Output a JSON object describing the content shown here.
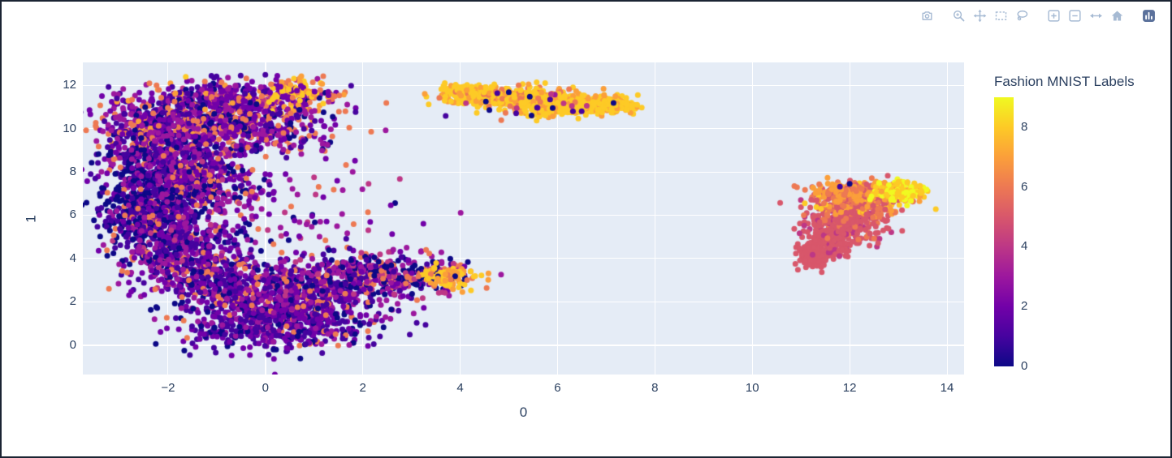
{
  "figure": {
    "border_color": "#1b2433",
    "background": "#ffffff"
  },
  "modebar": {
    "color": "#a6bad3",
    "logo_color": "#5b719b",
    "tools": [
      {
        "name": "download-plot",
        "icon": "camera-icon",
        "group_start": false
      },
      {
        "name": "zoom",
        "icon": "magnifier-icon",
        "group_start": true
      },
      {
        "name": "pan",
        "icon": "pan-icon",
        "group_start": false
      },
      {
        "name": "box-select",
        "icon": "box-select-icon",
        "group_start": false
      },
      {
        "name": "lasso-select",
        "icon": "lasso-icon",
        "group_start": false
      },
      {
        "name": "zoom-in",
        "icon": "zoom-in-icon",
        "group_start": true
      },
      {
        "name": "zoom-out",
        "icon": "zoom-out-icon",
        "group_start": false
      },
      {
        "name": "autoscale",
        "icon": "autoscale-icon",
        "group_start": false
      },
      {
        "name": "reset-axes",
        "icon": "home-icon",
        "group_start": false
      },
      {
        "name": "plotly-logo",
        "icon": "plotly-logo-icon",
        "group_start": true
      }
    ]
  },
  "chart_data": {
    "type": "scatter",
    "title": "",
    "xlabel": "0",
    "ylabel": "1",
    "xlim": [
      -3.75,
      14.35
    ],
    "ylim": [
      -1.35,
      13.05
    ],
    "x_ticks": [
      -2,
      0,
      2,
      4,
      6,
      8,
      10,
      12,
      14
    ],
    "y_ticks": [
      0,
      2,
      4,
      6,
      8,
      10,
      12
    ],
    "plot_bgcolor": "#e5ecf6",
    "grid_color": "#ffffff",
    "font_color": "#2a3f5f",
    "marker_size_px": 7,
    "legend_position": "right",
    "colorbar": {
      "title": "Fashion MNIST Labels",
      "ticks": [
        0,
        2,
        4,
        6,
        8
      ],
      "cmin": 0,
      "cmax": 9
    },
    "colorscale_plasma": [
      "#0d0887",
      "#46039f",
      "#7201a8",
      "#9c179e",
      "#bd3786",
      "#d8576b",
      "#ed7953",
      "#fb9f3a",
      "#fdca26",
      "#f0f921"
    ],
    "description": "2D embedding of Fashion MNIST, three clusters: large mixed-color crescent left, gold elongated strip top-center, crimson/gold leaf-shaped blob right",
    "clusters": [
      {
        "region": "crescent-top-band",
        "cx": -0.7,
        "cy": 11.25,
        "sx": 1.05,
        "sy": 0.5,
        "n": 520,
        "labels": {
          "0": 1,
          "1": 2,
          "2": 3,
          "3": 2,
          "4": 0.5,
          "6": 1.5,
          "7": 1,
          "8": 0.3
        }
      },
      {
        "region": "crescent-top-gold",
        "cx": 0.7,
        "cy": 11.7,
        "sx": 0.45,
        "sy": 0.28,
        "n": 90,
        "labels": {
          "2": 1,
          "6": 1,
          "7": 1,
          "8": 2
        }
      },
      {
        "region": "crescent-top-left",
        "cx": -1.9,
        "cy": 10.2,
        "sx": 0.75,
        "sy": 0.6,
        "n": 430,
        "labels": {
          "0": 1,
          "1": 2,
          "2": 3,
          "3": 2,
          "6": 1.5,
          "7": 0.5
        }
      },
      {
        "region": "crescent-upper-mid",
        "cx": -0.3,
        "cy": 9.7,
        "sx": 0.9,
        "sy": 0.55,
        "n": 330,
        "labels": {
          "0": 1,
          "1": 1.5,
          "2": 2,
          "3": 2,
          "6": 1.5
        }
      },
      {
        "region": "crescent-left-upper",
        "cx": -2.1,
        "cy": 8.6,
        "sx": 0.62,
        "sy": 0.75,
        "n": 430,
        "labels": {
          "0": 2,
          "1": 2,
          "2": 2,
          "3": 2,
          "6": 1
        }
      },
      {
        "region": "crescent-left-navy",
        "cx": -2.35,
        "cy": 6.4,
        "sx": 0.55,
        "sy": 1.0,
        "n": 520,
        "labels": {
          "0": 5,
          "1": 2,
          "2": 1,
          "3": 1,
          "6": 0.5
        }
      },
      {
        "region": "crescent-left-inner",
        "cx": -1.3,
        "cy": 7.6,
        "sx": 0.68,
        "sy": 0.85,
        "n": 340,
        "labels": {
          "0": 1.5,
          "1": 1.5,
          "2": 2,
          "3": 2,
          "6": 1
        }
      },
      {
        "region": "crescent-left-lower",
        "cx": -1.9,
        "cy": 4.6,
        "sx": 0.62,
        "sy": 0.85,
        "n": 430,
        "labels": {
          "0": 1.5,
          "1": 2.5,
          "2": 2,
          "3": 2,
          "4": 0.5,
          "6": 1
        }
      },
      {
        "region": "crescent-bottom-left",
        "cx": -0.9,
        "cy": 2.9,
        "sx": 0.68,
        "sy": 0.75,
        "n": 400,
        "labels": {
          "0": 1.5,
          "1": 3,
          "2": 2,
          "3": 1.5,
          "6": 1
        }
      },
      {
        "region": "crescent-bottom-core",
        "cx": 0.4,
        "cy": 1.1,
        "sx": 0.95,
        "sy": 0.7,
        "n": 620,
        "labels": {
          "0": 1.5,
          "1": 4,
          "2": 3,
          "3": 1,
          "6": 0.5
        }
      },
      {
        "region": "crescent-bottom-mid",
        "cx": 0.9,
        "cy": 2.6,
        "sx": 0.85,
        "sy": 0.65,
        "n": 380,
        "labels": {
          "0": 1,
          "1": 2,
          "2": 2,
          "3": 2,
          "4": 0.5,
          "6": 1
        }
      },
      {
        "region": "crescent-arm",
        "cx": 2.4,
        "cy": 3.3,
        "sx": 0.75,
        "sy": 0.5,
        "n": 360,
        "labels": {
          "0": 2,
          "1": 1,
          "2": 1.5,
          "3": 2,
          "4": 1,
          "6": 1.5
        }
      },
      {
        "region": "crescent-arm-tip-gold",
        "cx": 3.75,
        "cy": 3.1,
        "sx": 0.26,
        "sy": 0.22,
        "n": 120,
        "labels": {
          "0": 0.5,
          "6": 1,
          "7": 1.5,
          "8": 4
        }
      },
      {
        "region": "crescent-inner-sparse",
        "cx": 0.6,
        "cy": 5.8,
        "sx": 1.25,
        "sy": 1.4,
        "n": 110,
        "labels": {
          "0": 1,
          "2": 2,
          "3": 2,
          "4": 1,
          "6": 1
        }
      },
      {
        "region": "top-strip-1",
        "cx": 4.1,
        "cy": 11.55,
        "sx": 0.3,
        "sy": 0.22,
        "n": 170,
        "labels": {
          "6": 0.8,
          "7": 1.5,
          "8": 5
        }
      },
      {
        "region": "top-strip-2",
        "cx": 4.9,
        "cy": 11.45,
        "sx": 0.35,
        "sy": 0.24,
        "n": 200,
        "labels": {
          "6": 0.8,
          "7": 1.5,
          "8": 5
        }
      },
      {
        "region": "top-strip-3",
        "cx": 5.7,
        "cy": 11.3,
        "sx": 0.4,
        "sy": 0.26,
        "n": 220,
        "labels": {
          "6": 0.8,
          "7": 1.5,
          "8": 5
        }
      },
      {
        "region": "top-strip-4",
        "cx": 6.5,
        "cy": 11.15,
        "sx": 0.35,
        "sy": 0.24,
        "n": 180,
        "labels": {
          "6": 0.8,
          "7": 1.5,
          "8": 5
        }
      },
      {
        "region": "top-strip-5",
        "cx": 7.15,
        "cy": 11.1,
        "sx": 0.24,
        "sy": 0.17,
        "n": 110,
        "labels": {
          "7": 1.5,
          "8": 5
        }
      },
      {
        "region": "top-strip-bulge",
        "cx": 6.0,
        "cy": 10.85,
        "sx": 0.45,
        "sy": 0.17,
        "n": 80,
        "labels": {
          "7": 1,
          "8": 4
        }
      },
      {
        "region": "top-strip-noise",
        "cx": 5.4,
        "cy": 11.25,
        "sx": 0.85,
        "sy": 0.3,
        "n": 22,
        "labels": {
          "0": 1,
          "1": 1,
          "3": 1,
          "4": 1,
          "6": 1
        }
      },
      {
        "region": "right-tip-low",
        "cx": 11.3,
        "cy": 4.15,
        "sx": 0.17,
        "sy": 0.33,
        "n": 110,
        "labels": {
          "5": 1
        }
      },
      {
        "region": "right-body-low",
        "cx": 11.6,
        "cy": 5.0,
        "sx": 0.27,
        "sy": 0.45,
        "n": 210,
        "labels": {
          "4": 1,
          "5": 6
        }
      },
      {
        "region": "right-body-mid",
        "cx": 11.95,
        "cy": 5.9,
        "sx": 0.4,
        "sy": 0.5,
        "n": 290,
        "labels": {
          "4": 1,
          "5": 5,
          "6": 1
        }
      },
      {
        "region": "right-body-up",
        "cx": 12.2,
        "cy": 6.7,
        "sx": 0.5,
        "sy": 0.4,
        "n": 270,
        "labels": {
          "5": 3,
          "6": 2,
          "7": 2,
          "8": 0.7
        }
      },
      {
        "region": "right-orange-cap",
        "cx": 12.0,
        "cy": 7.15,
        "sx": 0.45,
        "sy": 0.2,
        "n": 130,
        "labels": {
          "5": 1,
          "6": 3,
          "7": 3
        }
      },
      {
        "region": "right-gold-tip",
        "cx": 13.05,
        "cy": 7.1,
        "sx": 0.27,
        "sy": 0.24,
        "n": 190,
        "labels": {
          "7": 1,
          "8": 4,
          "9": 3
        }
      }
    ],
    "outliers": [
      [
        4.6,
        10.85,
        0
      ],
      [
        5.15,
        10.7,
        1
      ],
      [
        5.9,
        10.95,
        0
      ],
      [
        6.6,
        11.05,
        4
      ],
      [
        12.0,
        7.45,
        0
      ],
      [
        11.8,
        7.32,
        1
      ],
      [
        3.3,
        4.4,
        6
      ],
      [
        2.9,
        4.5,
        3
      ]
    ]
  }
}
